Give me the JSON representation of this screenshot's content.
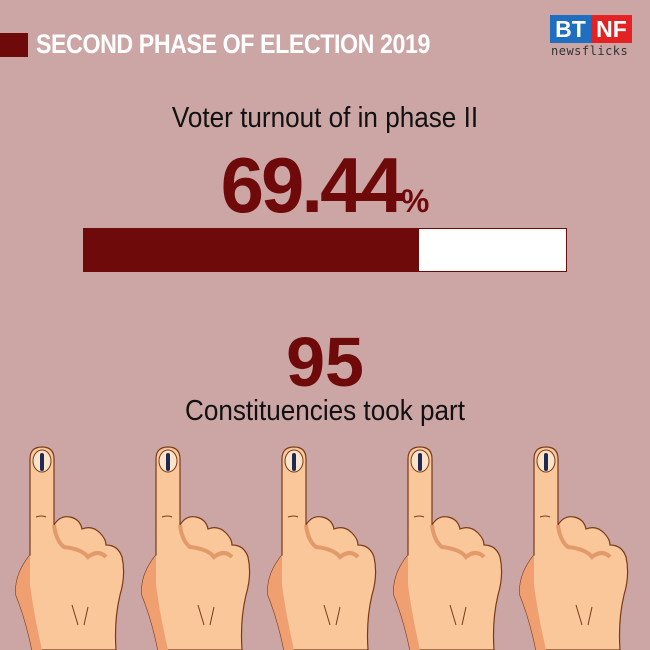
{
  "header": {
    "title": "SECOND PHASE OF ELECTION 2019"
  },
  "logo": {
    "left": "BT",
    "right": "NF",
    "tagline": "newsflicks",
    "colors": {
      "left": "#1f6ec0",
      "right": "#e32323"
    }
  },
  "turnout": {
    "label": "Voter turnout of in phase II",
    "value": "69.44",
    "unit": "%",
    "progress_percent": 69.44
  },
  "constituencies": {
    "count": "95",
    "label": "Constituencies took part"
  },
  "illustration": {
    "icon": "inked-finger-hand",
    "count": 5
  },
  "colors": {
    "background": "#cca5a5",
    "accent": "#6e0a0a"
  }
}
